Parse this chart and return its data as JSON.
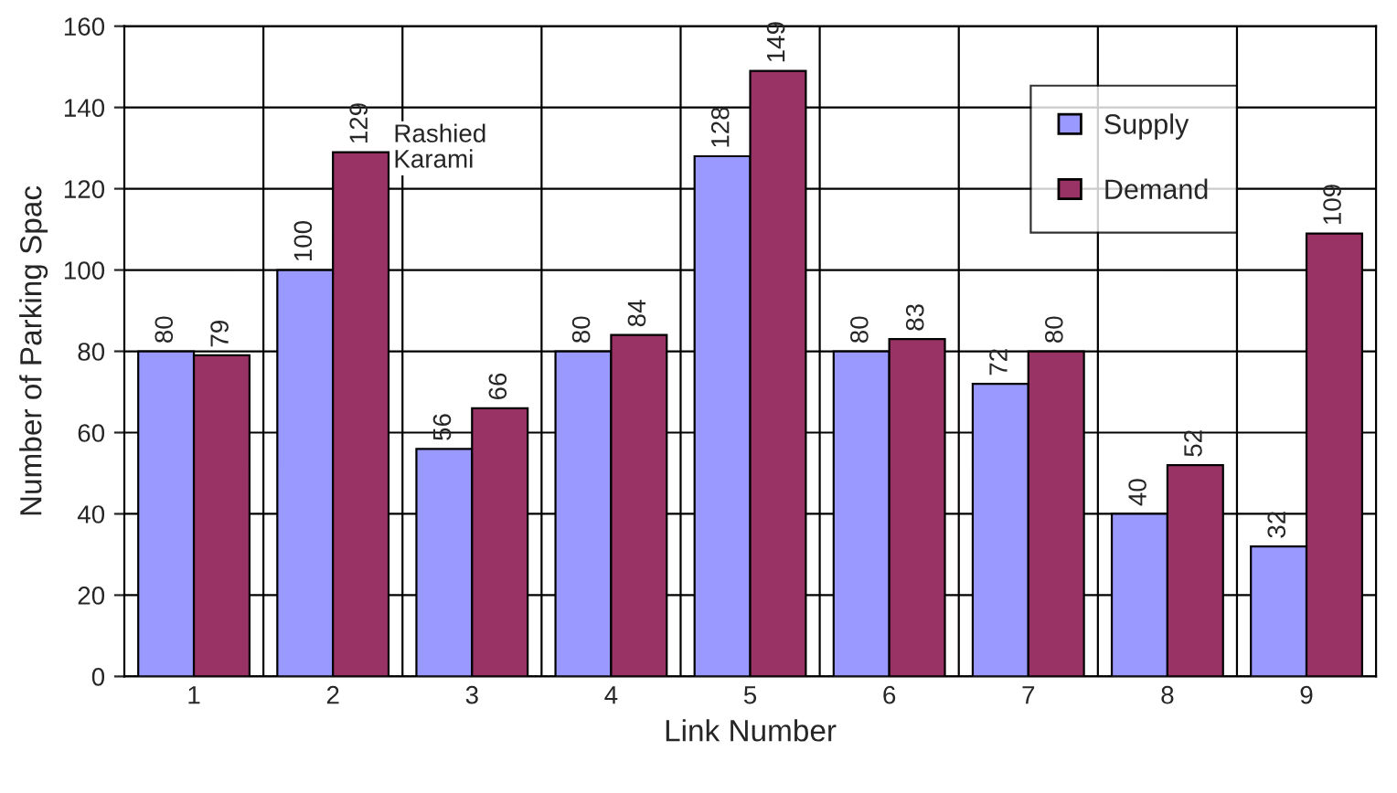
{
  "chart_data": {
    "type": "bar",
    "xlabel": "Link Number",
    "ylabel": "Number of Parking Spac",
    "categories": [
      "1",
      "2",
      "3",
      "4",
      "5",
      "6",
      "7",
      "8",
      "9"
    ],
    "series": [
      {
        "name": "Supply",
        "color": "#9999ff",
        "values": [
          80,
          100,
          56,
          80,
          128,
          80,
          72,
          40,
          32
        ]
      },
      {
        "name": "Demand",
        "color": "#993366",
        "values": [
          79,
          129,
          66,
          84,
          149,
          83,
          80,
          52,
          109
        ]
      }
    ],
    "ylim": [
      0,
      160
    ],
    "yticks": [
      0,
      20,
      40,
      60,
      80,
      100,
      120,
      140,
      160
    ],
    "grid": true,
    "legend": "top right",
    "data_labels": true,
    "annotations": [
      "Rashied\nKarami"
    ]
  }
}
